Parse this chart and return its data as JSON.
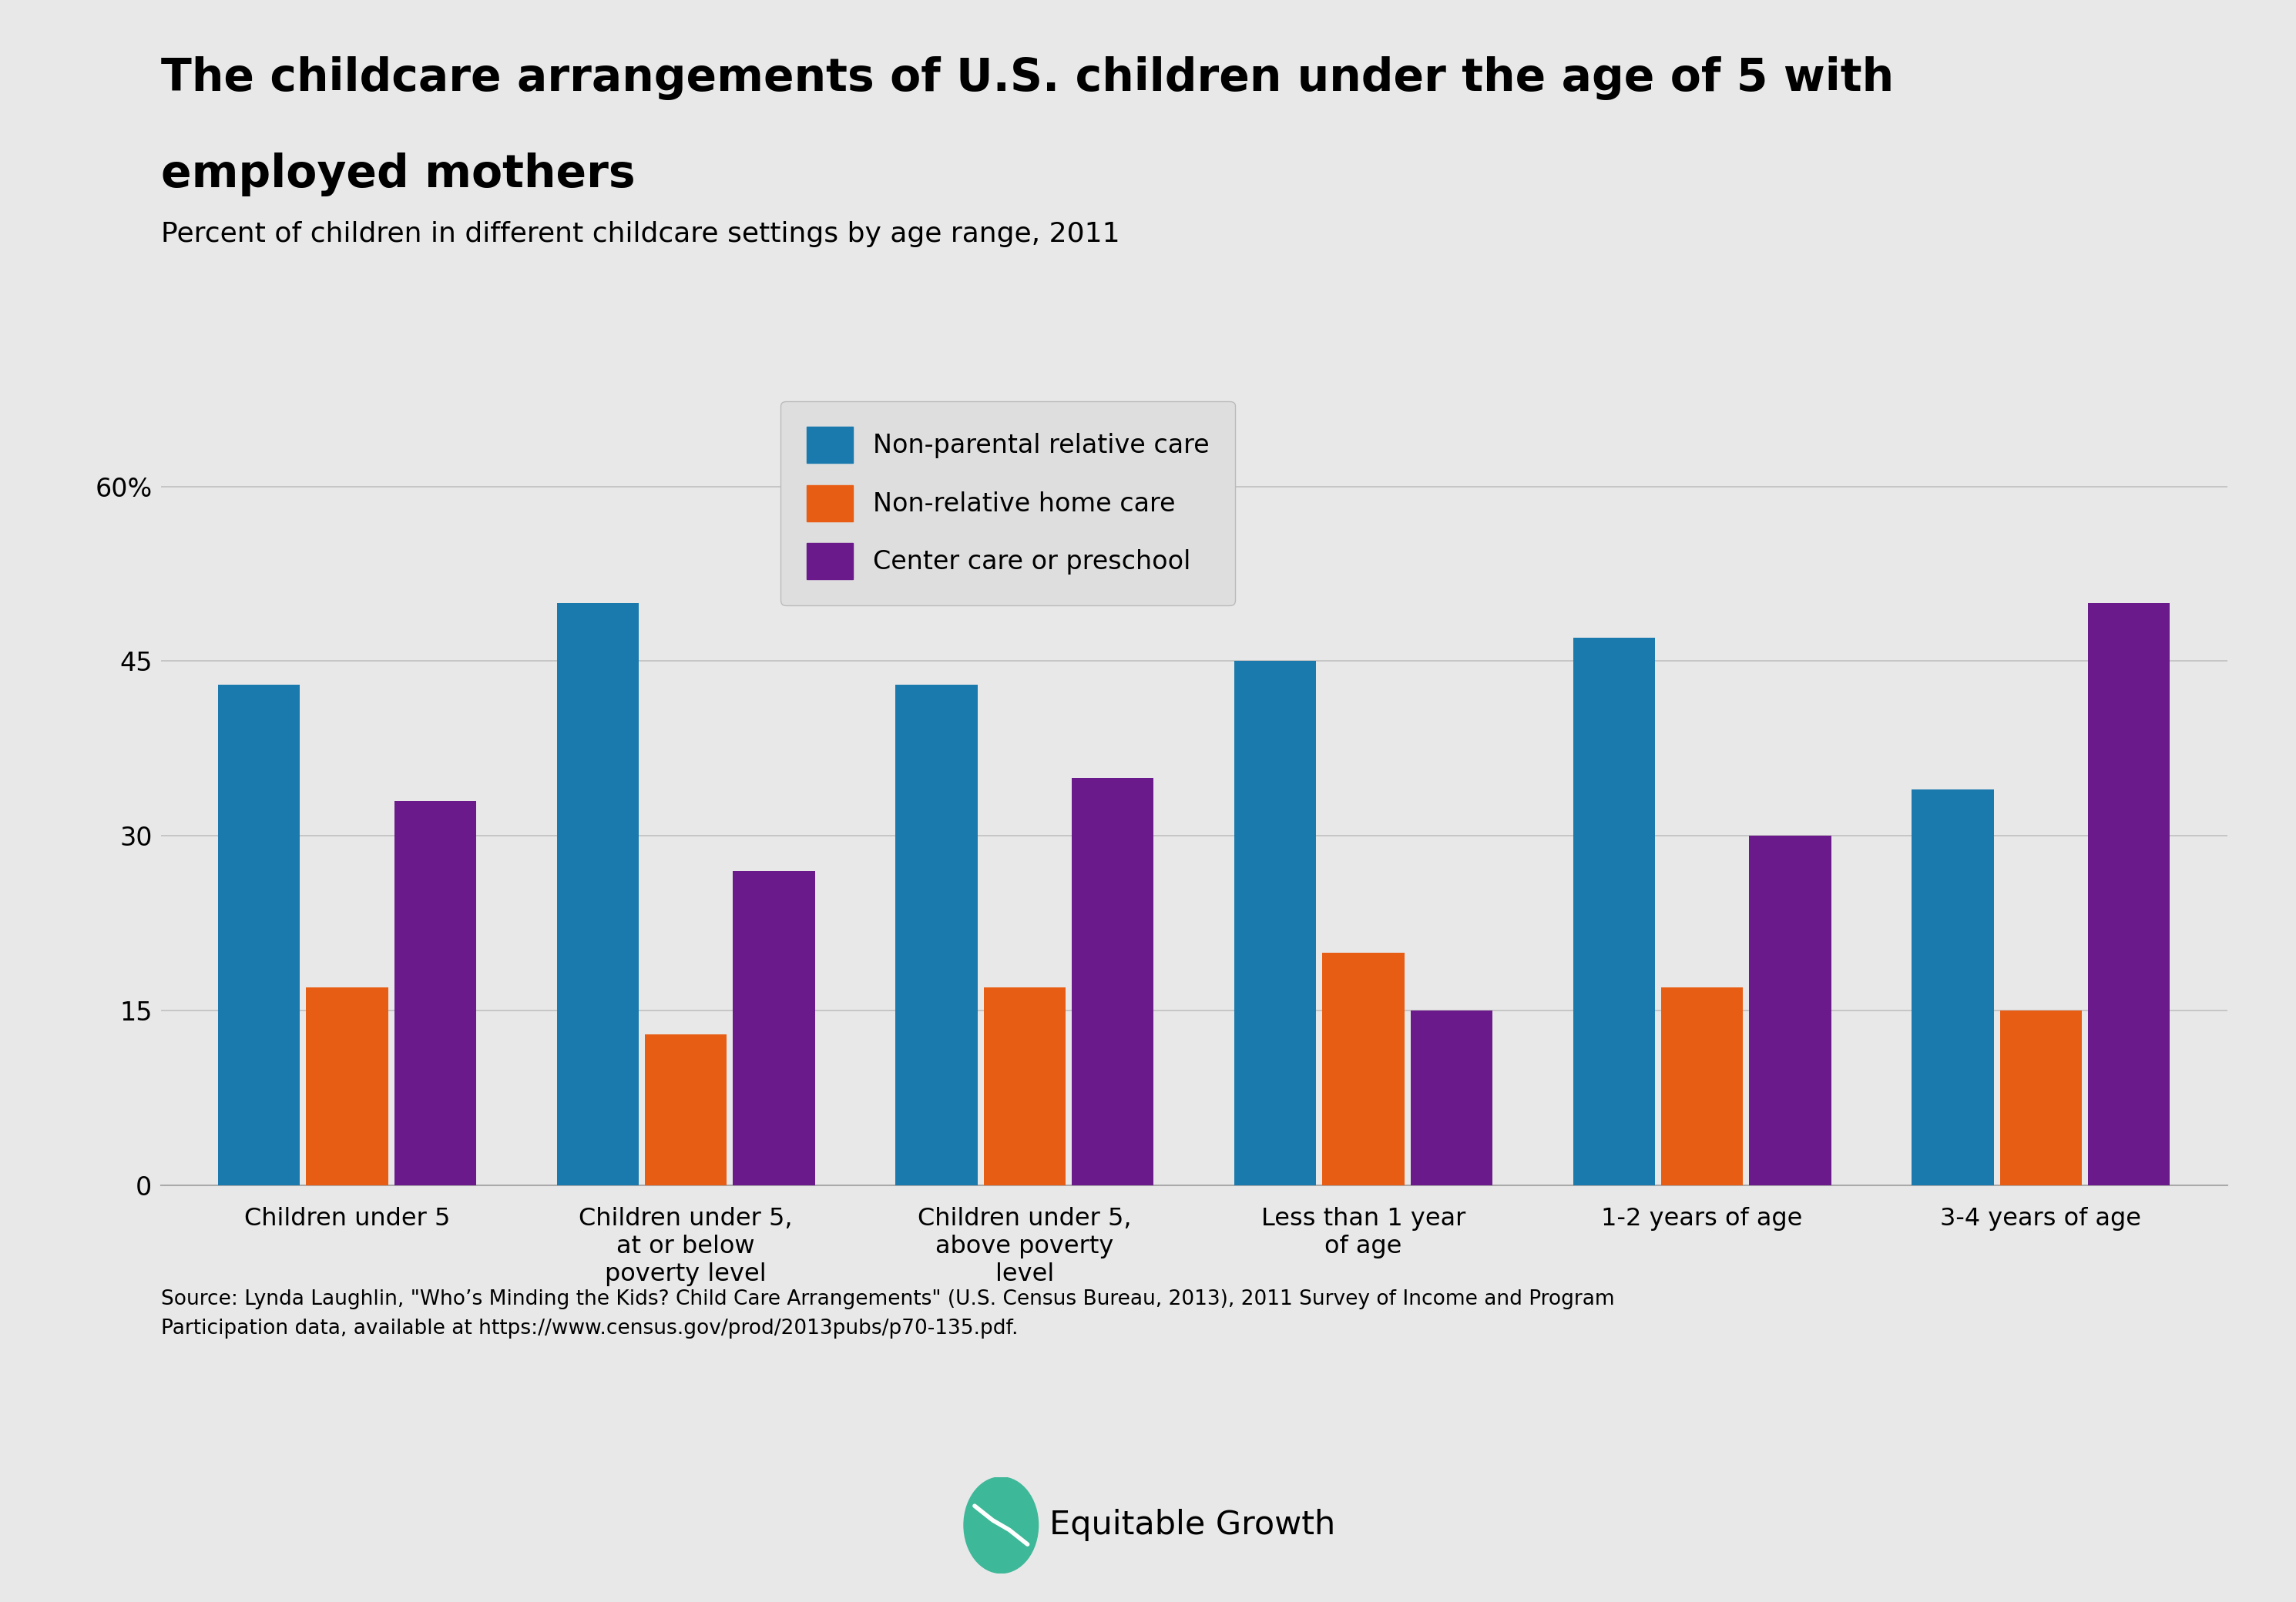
{
  "title_line1": "The childcare arrangements of U.S. children under the age of 5 with",
  "title_line2": "employed mothers",
  "subtitle": "Percent of children in different childcare settings by age range, 2011",
  "categories": [
    "Children under 5",
    "Children under 5,\nat or below\npoverty level",
    "Children under 5,\nabove poverty\nlevel",
    "Less than 1 year\nof age",
    "1-2 years of age",
    "3-4 years of age"
  ],
  "series": [
    {
      "label": "Non-parental relative care",
      "color": "#1a7aad",
      "values": [
        43,
        50,
        43,
        45,
        47,
        34
      ]
    },
    {
      "label": "Non-relative home care",
      "color": "#e85d14",
      "values": [
        17,
        13,
        17,
        20,
        17,
        15
      ]
    },
    {
      "label": "Center care or preschool",
      "color": "#6a1a8a",
      "values": [
        33,
        27,
        35,
        15,
        30,
        50
      ]
    }
  ],
  "yticks": [
    0,
    15,
    30,
    45,
    60
  ],
  "ytick_labels": [
    "0",
    "15",
    "30",
    "45",
    "60%"
  ],
  "ylim": [
    0,
    66
  ],
  "background_color": "#e8e8e8",
  "source_text": "Source: Lynda Laughlin, \"Who’s Minding the Kids? Child Care Arrangements\" (U.S. Census Bureau, 2013), 2011 Survey of Income and Program\nParticipation data, available at https://www.census.gov/prod/2013pubs/p70-135.pdf.",
  "bar_width": 0.26
}
